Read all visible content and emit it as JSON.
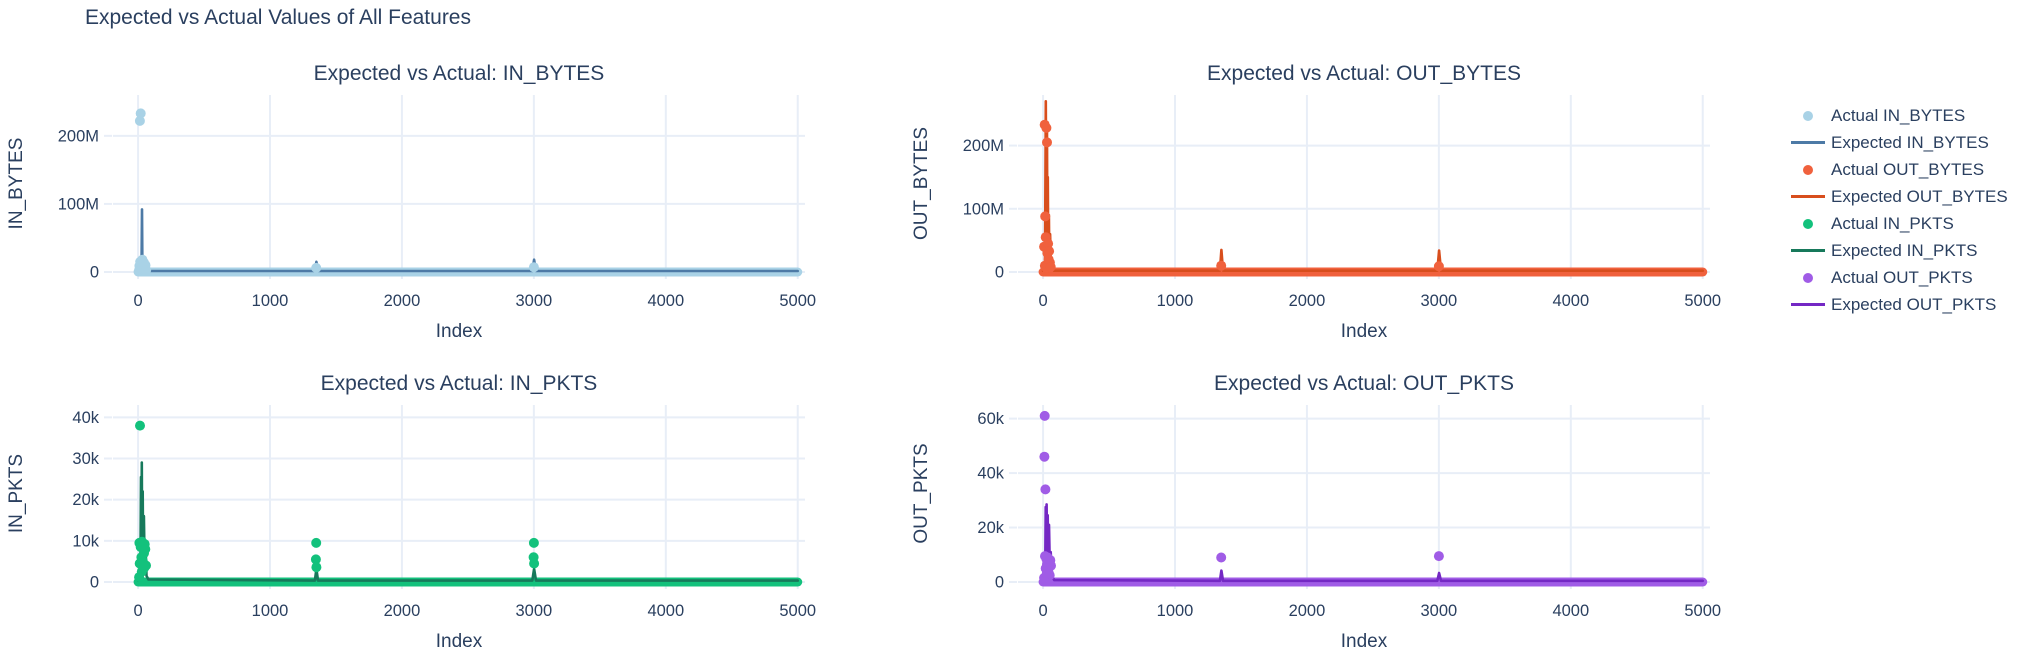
{
  "figure_title": "Expected vs Actual Values of All Features",
  "text_color": "#2a3f5f",
  "grid_color": "#e8eef7",
  "background_color": "#ffffff",
  "legend": {
    "items": [
      {
        "label": "Actual IN_BYTES",
        "marker": "dot",
        "color": "#a9d2e6"
      },
      {
        "label": "Expected IN_BYTES",
        "marker": "line",
        "color": "#4d7aa6"
      },
      {
        "label": "Actual OUT_BYTES",
        "marker": "dot",
        "color": "#f0613d"
      },
      {
        "label": "Expected OUT_BYTES",
        "marker": "line",
        "color": "#d84e1d"
      },
      {
        "label": "Actual IN_PKTS",
        "marker": "dot",
        "color": "#13c17c"
      },
      {
        "label": "Expected IN_PKTS",
        "marker": "line",
        "color": "#17795b"
      },
      {
        "label": "Actual OUT_PKTS",
        "marker": "dot",
        "color": "#a05ce6"
      },
      {
        "label": "Expected OUT_PKTS",
        "marker": "line",
        "color": "#7428c4"
      }
    ]
  },
  "chart_data": [
    {
      "type": "scatter",
      "title": "Expected vs Actual: IN_BYTES",
      "xlabel": "Index",
      "ylabel": "IN_BYTES",
      "xlim": [
        -190,
        5055
      ],
      "ylim": [
        0,
        260000000
      ],
      "xticks": [
        0,
        1000,
        2000,
        3000,
        4000,
        5000
      ],
      "xtick_labels": [
        "0",
        "1000",
        "2000",
        "3000",
        "4000",
        "5000"
      ],
      "yticks": [
        0,
        100000000,
        200000000
      ],
      "ytick_labels": [
        "0",
        "100M",
        "200M"
      ],
      "series": [
        {
          "name": "Actual IN_BYTES",
          "role": "actual",
          "color": "#a9d2e6"
        },
        {
          "name": "Expected IN_BYTES",
          "role": "expected",
          "color": "#4d7aa6"
        }
      ],
      "actual_band_y": 0,
      "actual_points": [
        [
          20,
          233000000
        ],
        [
          14,
          222000000
        ],
        [
          6,
          2000000
        ],
        [
          10,
          9000000
        ],
        [
          16,
          15000000
        ],
        [
          24,
          5000000
        ],
        [
          28,
          12000000
        ],
        [
          33,
          18000000
        ],
        [
          38,
          8000000
        ],
        [
          44,
          14000000
        ],
        [
          50,
          4000000
        ],
        [
          56,
          10000000
        ],
        [
          62,
          3000000
        ],
        [
          1350,
          6000000
        ],
        [
          3000,
          7000000
        ]
      ],
      "expected_line": [
        [
          0,
          1500000
        ],
        [
          16,
          2500000
        ],
        [
          26,
          4000000
        ],
        [
          30,
          92000000
        ],
        [
          33,
          6000000
        ],
        [
          37,
          18000000
        ],
        [
          41,
          4000000
        ],
        [
          45,
          14000000
        ],
        [
          50,
          3000000
        ],
        [
          55,
          10000000
        ],
        [
          62,
          2000000
        ],
        [
          72,
          7000000
        ],
        [
          85,
          1500000
        ],
        [
          1340,
          1500000
        ],
        [
          1352,
          15000000
        ],
        [
          1364,
          1500000
        ],
        [
          2988,
          1500000
        ],
        [
          3002,
          18000000
        ],
        [
          3016,
          1500000
        ],
        [
          5000,
          1500000
        ]
      ]
    },
    {
      "type": "scatter",
      "title": "Expected vs Actual: OUT_BYTES",
      "xlabel": "Index",
      "ylabel": "OUT_BYTES",
      "xlim": [
        -190,
        5055
      ],
      "ylim": [
        0,
        280000000
      ],
      "xticks": [
        0,
        1000,
        2000,
        3000,
        4000,
        5000
      ],
      "xtick_labels": [
        "0",
        "1000",
        "2000",
        "3000",
        "4000",
        "5000"
      ],
      "yticks": [
        0,
        100000000,
        200000000
      ],
      "ytick_labels": [
        "0",
        "100M",
        "200M"
      ],
      "series": [
        {
          "name": "Actual OUT_BYTES",
          "role": "actual",
          "color": "#f0613d"
        },
        {
          "name": "Expected OUT_BYTES",
          "role": "expected",
          "color": "#d84e1d"
        }
      ],
      "actual_band_y": 0,
      "actual_points": [
        [
          12,
          233000000
        ],
        [
          25,
          228000000
        ],
        [
          30,
          205000000
        ],
        [
          16,
          88000000
        ],
        [
          8,
          40000000
        ],
        [
          20,
          55000000
        ],
        [
          33,
          30000000
        ],
        [
          42,
          20000000
        ],
        [
          14,
          10000000
        ],
        [
          38,
          45000000
        ],
        [
          52,
          15000000
        ],
        [
          26,
          6000000
        ],
        [
          46,
          33000000
        ],
        [
          58,
          8000000
        ],
        [
          1350,
          10000000
        ],
        [
          3000,
          9000000
        ]
      ],
      "expected_line": [
        [
          0,
          2000000
        ],
        [
          15,
          8000000
        ],
        [
          21,
          270000000
        ],
        [
          26,
          30000000
        ],
        [
          30,
          220000000
        ],
        [
          33,
          20000000
        ],
        [
          36,
          150000000
        ],
        [
          40,
          10000000
        ],
        [
          44,
          90000000
        ],
        [
          48,
          8000000
        ],
        [
          53,
          60000000
        ],
        [
          60,
          5000000
        ],
        [
          70,
          15000000
        ],
        [
          82,
          2000000
        ],
        [
          1340,
          2000000
        ],
        [
          1352,
          35000000
        ],
        [
          1364,
          2000000
        ],
        [
          2988,
          2000000
        ],
        [
          3002,
          34000000
        ],
        [
          3016,
          2000000
        ],
        [
          5000,
          2000000
        ]
      ]
    },
    {
      "type": "scatter",
      "title": "Expected vs Actual: IN_PKTS",
      "xlabel": "Index",
      "ylabel": "IN_PKTS",
      "xlim": [
        -190,
        5055
      ],
      "ylim": [
        0,
        43000
      ],
      "xticks": [
        0,
        1000,
        2000,
        3000,
        4000,
        5000
      ],
      "xtick_labels": [
        "0",
        "1000",
        "2000",
        "3000",
        "4000",
        "5000"
      ],
      "yticks": [
        0,
        10000,
        20000,
        30000,
        40000
      ],
      "ytick_labels": [
        "0",
        "10k",
        "20k",
        "30k",
        "40k"
      ],
      "series": [
        {
          "name": "Actual IN_PKTS",
          "role": "actual",
          "color": "#13c17c"
        },
        {
          "name": "Expected IN_PKTS",
          "role": "expected",
          "color": "#17795b"
        }
      ],
      "actual_band_y": 0,
      "actual_points": [
        [
          15,
          38000
        ],
        [
          10,
          9500
        ],
        [
          20,
          8500
        ],
        [
          30,
          9800
        ],
        [
          40,
          8800
        ],
        [
          50,
          9200
        ],
        [
          25,
          6000
        ],
        [
          35,
          5200
        ],
        [
          45,
          7000
        ],
        [
          55,
          8000
        ],
        [
          60,
          4000
        ],
        [
          12,
          4500
        ],
        [
          28,
          2500
        ],
        [
          48,
          3500
        ],
        [
          8,
          1200
        ],
        [
          1350,
          9500
        ],
        [
          1348,
          5500
        ],
        [
          1352,
          3600
        ],
        [
          3000,
          9500
        ],
        [
          2998,
          6000
        ],
        [
          3002,
          4500
        ]
      ],
      "expected_line": [
        [
          0,
          350
        ],
        [
          12,
          800
        ],
        [
          18,
          3000
        ],
        [
          22,
          25500
        ],
        [
          25,
          6000
        ],
        [
          28,
          29000
        ],
        [
          31,
          5000
        ],
        [
          35,
          22000
        ],
        [
          39,
          3500
        ],
        [
          44,
          16000
        ],
        [
          50,
          2500
        ],
        [
          56,
          9000
        ],
        [
          64,
          1500
        ],
        [
          78,
          600
        ],
        [
          1340,
          350
        ],
        [
          1352,
          3200
        ],
        [
          1364,
          350
        ],
        [
          2988,
          350
        ],
        [
          3002,
          3200
        ],
        [
          3016,
          350
        ],
        [
          5000,
          350
        ]
      ]
    },
    {
      "type": "scatter",
      "title": "Expected vs Actual: OUT_PKTS",
      "xlabel": "Index",
      "ylabel": "OUT_PKTS",
      "xlim": [
        -190,
        5055
      ],
      "ylim": [
        0,
        65000
      ],
      "xticks": [
        0,
        1000,
        2000,
        3000,
        4000,
        5000
      ],
      "xtick_labels": [
        "0",
        "1000",
        "2000",
        "3000",
        "4000",
        "5000"
      ],
      "yticks": [
        0,
        20000,
        40000,
        60000
      ],
      "ytick_labels": [
        "0",
        "20k",
        "40k",
        "60k"
      ],
      "series": [
        {
          "name": "Actual OUT_PKTS",
          "role": "actual",
          "color": "#a05ce6"
        },
        {
          "name": "Expected OUT_PKTS",
          "role": "expected",
          "color": "#7428c4"
        }
      ],
      "actual_band_y": 0,
      "actual_points": [
        [
          12,
          61000
        ],
        [
          10,
          46000
        ],
        [
          18,
          34000
        ],
        [
          15,
          9500
        ],
        [
          25,
          8500
        ],
        [
          35,
          9000
        ],
        [
          45,
          7500
        ],
        [
          20,
          5000
        ],
        [
          30,
          6500
        ],
        [
          40,
          4000
        ],
        [
          55,
          8000
        ],
        [
          50,
          2500
        ],
        [
          60,
          6000
        ],
        [
          8,
          1500
        ],
        [
          28,
          3000
        ],
        [
          1350,
          9000
        ],
        [
          3000,
          9500
        ]
      ],
      "expected_line": [
        [
          0,
          450
        ],
        [
          10,
          900
        ],
        [
          16,
          4000
        ],
        [
          20,
          27500
        ],
        [
          24,
          10000
        ],
        [
          27,
          28500
        ],
        [
          31,
          7000
        ],
        [
          35,
          24500
        ],
        [
          40,
          5500
        ],
        [
          45,
          21000
        ],
        [
          52,
          4000
        ],
        [
          58,
          11000
        ],
        [
          68,
          2000
        ],
        [
          85,
          700
        ],
        [
          1340,
          450
        ],
        [
          1352,
          4200
        ],
        [
          1364,
          450
        ],
        [
          2988,
          450
        ],
        [
          3002,
          3300
        ],
        [
          3016,
          450
        ],
        [
          5000,
          450
        ]
      ]
    }
  ]
}
